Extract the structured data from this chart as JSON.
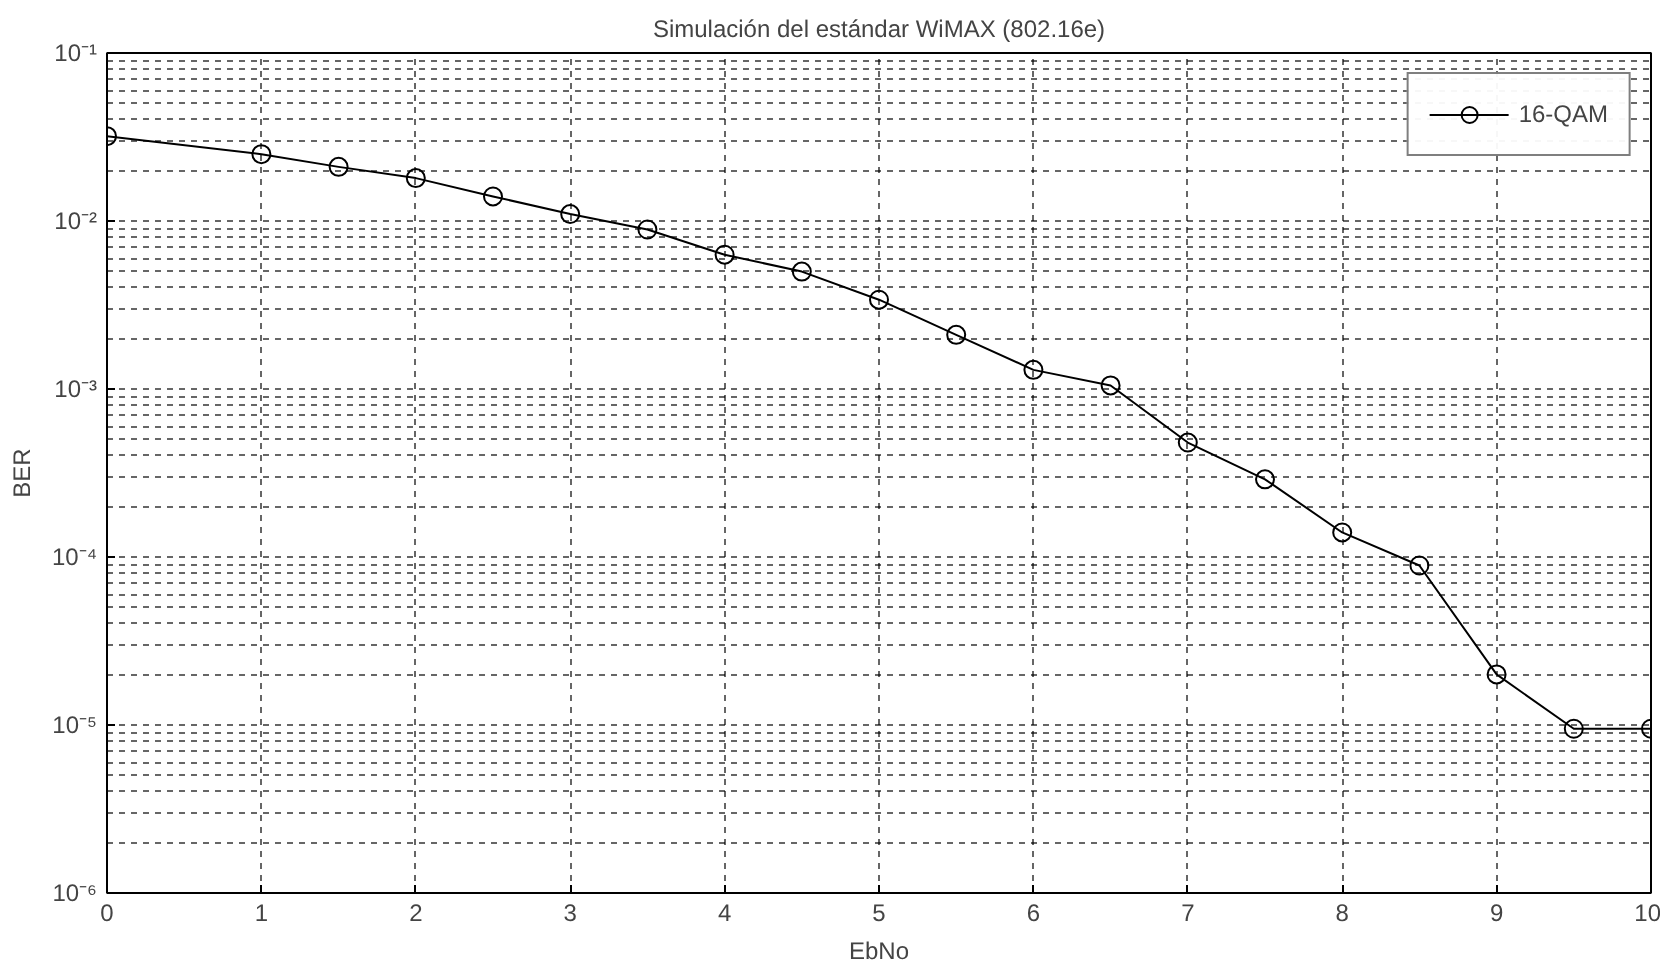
{
  "chart_data": {
    "type": "line",
    "title": "Simulación del estándar WiMAX (802.16e)",
    "xlabel": "EbNo",
    "ylabel": "BER",
    "x": [
      0,
      1,
      1.5,
      2,
      2.5,
      3,
      3.5,
      4,
      4.5,
      5,
      5.5,
      6,
      6.5,
      7,
      7.5,
      8,
      8.5,
      9,
      9.5,
      10
    ],
    "series": [
      {
        "name": "16-QAM",
        "color": "#000000",
        "values": [
          0.032,
          0.025,
          0.021,
          0.018,
          0.014,
          0.011,
          0.0089,
          0.0063,
          0.005,
          0.0034,
          0.0021,
          0.0013,
          0.00105,
          0.00048,
          0.00029,
          0.00014,
          8.9e-05,
          2e-05,
          9.5e-06,
          9.5e-06
        ]
      }
    ],
    "xlim": [
      0,
      10
    ],
    "xticks": [
      0,
      1,
      2,
      3,
      4,
      5,
      6,
      7,
      8,
      9,
      10
    ],
    "ylim": [
      1e-06,
      0.1
    ],
    "yticks": [
      {
        "value": 1e-06,
        "label": "10⁻⁶"
      },
      {
        "value": 1e-05,
        "label": "10⁻⁵"
      },
      {
        "value": 0.0001,
        "label": "10⁻⁴"
      },
      {
        "value": 0.001,
        "label": "10⁻³"
      },
      {
        "value": 0.01,
        "label": "10⁻²"
      },
      {
        "value": 0.1,
        "label": "10⁻¹"
      }
    ],
    "log": "y",
    "grid": true,
    "legend": "top right",
    "marker": "circle",
    "line_style": "solid"
  }
}
